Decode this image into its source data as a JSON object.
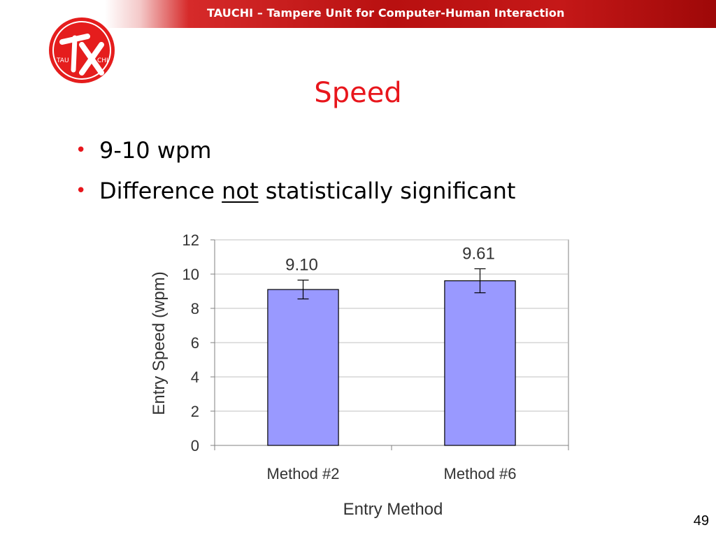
{
  "header": {
    "title": "TAUCHI – Tampere Unit for Computer-Human Interaction"
  },
  "logo": {
    "left": "TAU",
    "right": "CHI"
  },
  "slide": {
    "title": "Speed",
    "bullets": [
      {
        "text": "9-10 wpm"
      },
      {
        "before": "Difference ",
        "underlined": "not",
        "after": " statistically significant"
      }
    ],
    "page_number": "49"
  },
  "colors": {
    "accent": "#e8161c",
    "bar_fill": "#9999ff",
    "header": "#c01414"
  },
  "chart_data": {
    "type": "bar",
    "categories": [
      "Method #2",
      "Method #6"
    ],
    "values": [
      9.1,
      9.61
    ],
    "value_labels": [
      "9.10",
      "9.61"
    ],
    "error": [
      0.55,
      0.7
    ],
    "title": "",
    "xlabel": "Entry Method",
    "ylabel": "Entry Speed (wpm)",
    "ylim": [
      0,
      12
    ],
    "yticks": [
      0,
      2,
      4,
      6,
      8,
      10,
      12
    ],
    "grid": true
  }
}
